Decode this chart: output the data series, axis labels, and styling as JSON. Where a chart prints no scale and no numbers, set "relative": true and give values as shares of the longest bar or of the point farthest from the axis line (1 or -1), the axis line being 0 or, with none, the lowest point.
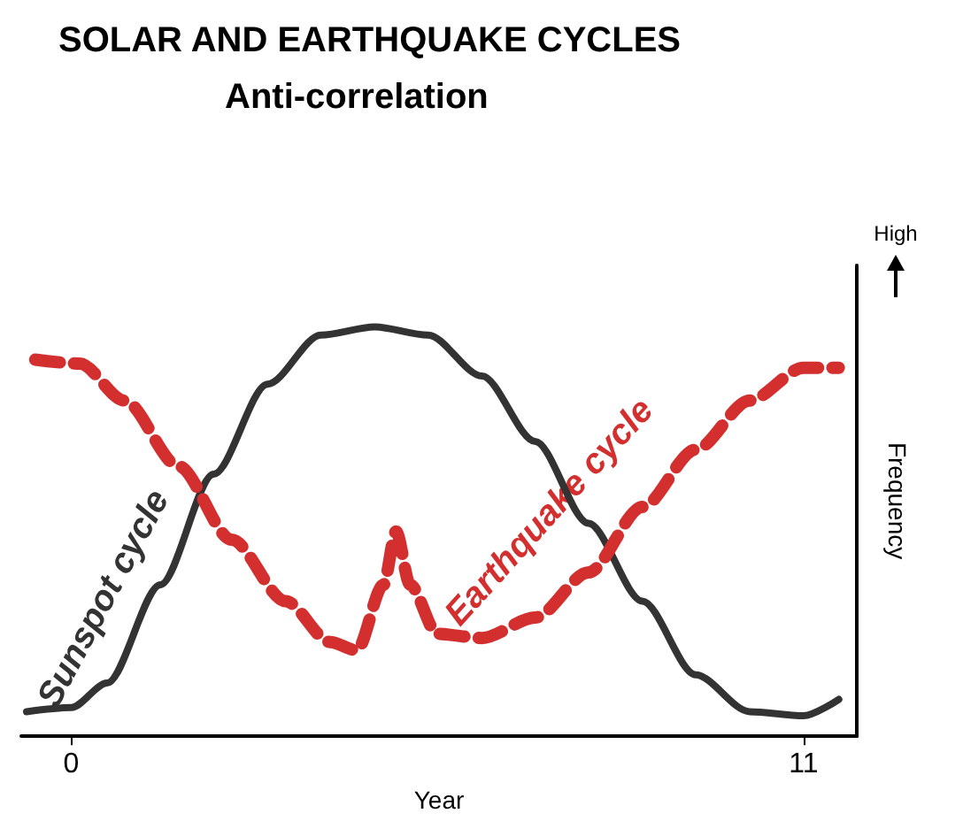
{
  "chart_data": {
    "type": "line",
    "title": "SOLAR AND EARTHQUAKE CYCLES",
    "subtitle": "Anti-correlation",
    "xlabel": "Year",
    "ylabel": "Frequency",
    "annotations": [
      "High"
    ],
    "relative": true,
    "xlim": [
      -0.75,
      11.8
    ],
    "xticks": [
      0,
      11
    ],
    "grid": false,
    "legend": false,
    "marker": "none",
    "series": [
      {
        "name": "Sunspot cycle",
        "color": "#333333",
        "line_style": "solid",
        "x": [
          -0.67,
          0,
          0.54,
          1.34,
          2.14,
          2.95,
          3.75,
          4.56,
          5.36,
          6.17,
          6.97,
          7.77,
          8.58,
          9.38,
          10.19,
          11,
          11.53
        ],
        "values": [
          0.06,
          0.07,
          0.13,
          0.37,
          0.64,
          0.86,
          0.98,
          1.0,
          0.98,
          0.88,
          0.72,
          0.52,
          0.33,
          0.15,
          0.06,
          0.05,
          0.09
        ]
      },
      {
        "name": "Earthquake cycle",
        "color": "#d32f2f",
        "line_style": "dashed",
        "x": [
          -0.54,
          0.13,
          0.8,
          1.61,
          2.41,
          3.22,
          3.89,
          4.29,
          4.69,
          4.88,
          5.09,
          5.5,
          6.17,
          6.97,
          7.77,
          8.58,
          9.38,
          10.19,
          11,
          11.53
        ],
        "values": [
          0.92,
          0.91,
          0.82,
          0.66,
          0.48,
          0.33,
          0.23,
          0.21,
          0.37,
          0.5,
          0.37,
          0.25,
          0.24,
          0.29,
          0.4,
          0.56,
          0.7,
          0.82,
          0.9,
          0.9
        ]
      }
    ]
  }
}
